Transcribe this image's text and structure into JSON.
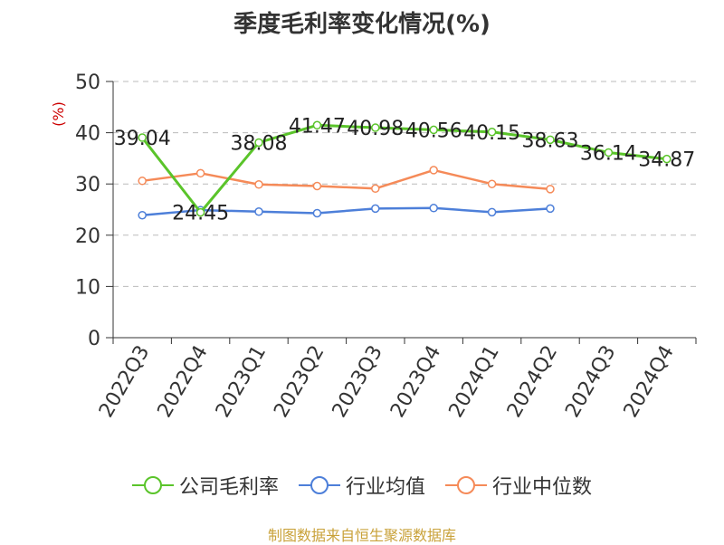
{
  "title": "季度毛利率变化情况(%)",
  "source": "制图数据来自恒生聚源数据库",
  "colors": {
    "company": "#5ac42a",
    "industry_avg": "#4d7fd9",
    "industry_median": "#f58a58",
    "ylabel": "#cc0000",
    "axis": "#333333",
    "grid": "#bbbbbb"
  },
  "chart_data": {
    "type": "line",
    "title": "季度毛利率变化情况(%)",
    "xlabel": "",
    "ylabel": "(%)",
    "ylim": [
      0,
      50
    ],
    "yticks": [
      0,
      10,
      20,
      30,
      40,
      50
    ],
    "grid": true,
    "legend_position": "bottom",
    "categories": [
      "2022Q3",
      "2022Q4",
      "2023Q1",
      "2023Q2",
      "2023Q3",
      "2023Q4",
      "2024Q1",
      "2024Q2",
      "2024Q3",
      "2024Q4"
    ],
    "series": [
      {
        "name": "公司毛利率",
        "values": [
          39.04,
          24.45,
          38.08,
          41.47,
          40.98,
          40.56,
          40.15,
          38.63,
          36.14,
          34.87
        ],
        "labels": [
          "39.04",
          "24.45",
          "38.08",
          "41.47",
          "40.98",
          "40.56",
          "40.15",
          "38.63",
          "36.14",
          "34.87"
        ]
      },
      {
        "name": "行业均值",
        "values": [
          23.9,
          24.9,
          24.6,
          24.3,
          25.2,
          25.3,
          24.5,
          25.2,
          null,
          null
        ]
      },
      {
        "name": "行业中位数",
        "values": [
          30.6,
          32.1,
          29.9,
          29.6,
          29.1,
          32.7,
          30.0,
          29.0,
          null,
          null
        ]
      }
    ]
  }
}
